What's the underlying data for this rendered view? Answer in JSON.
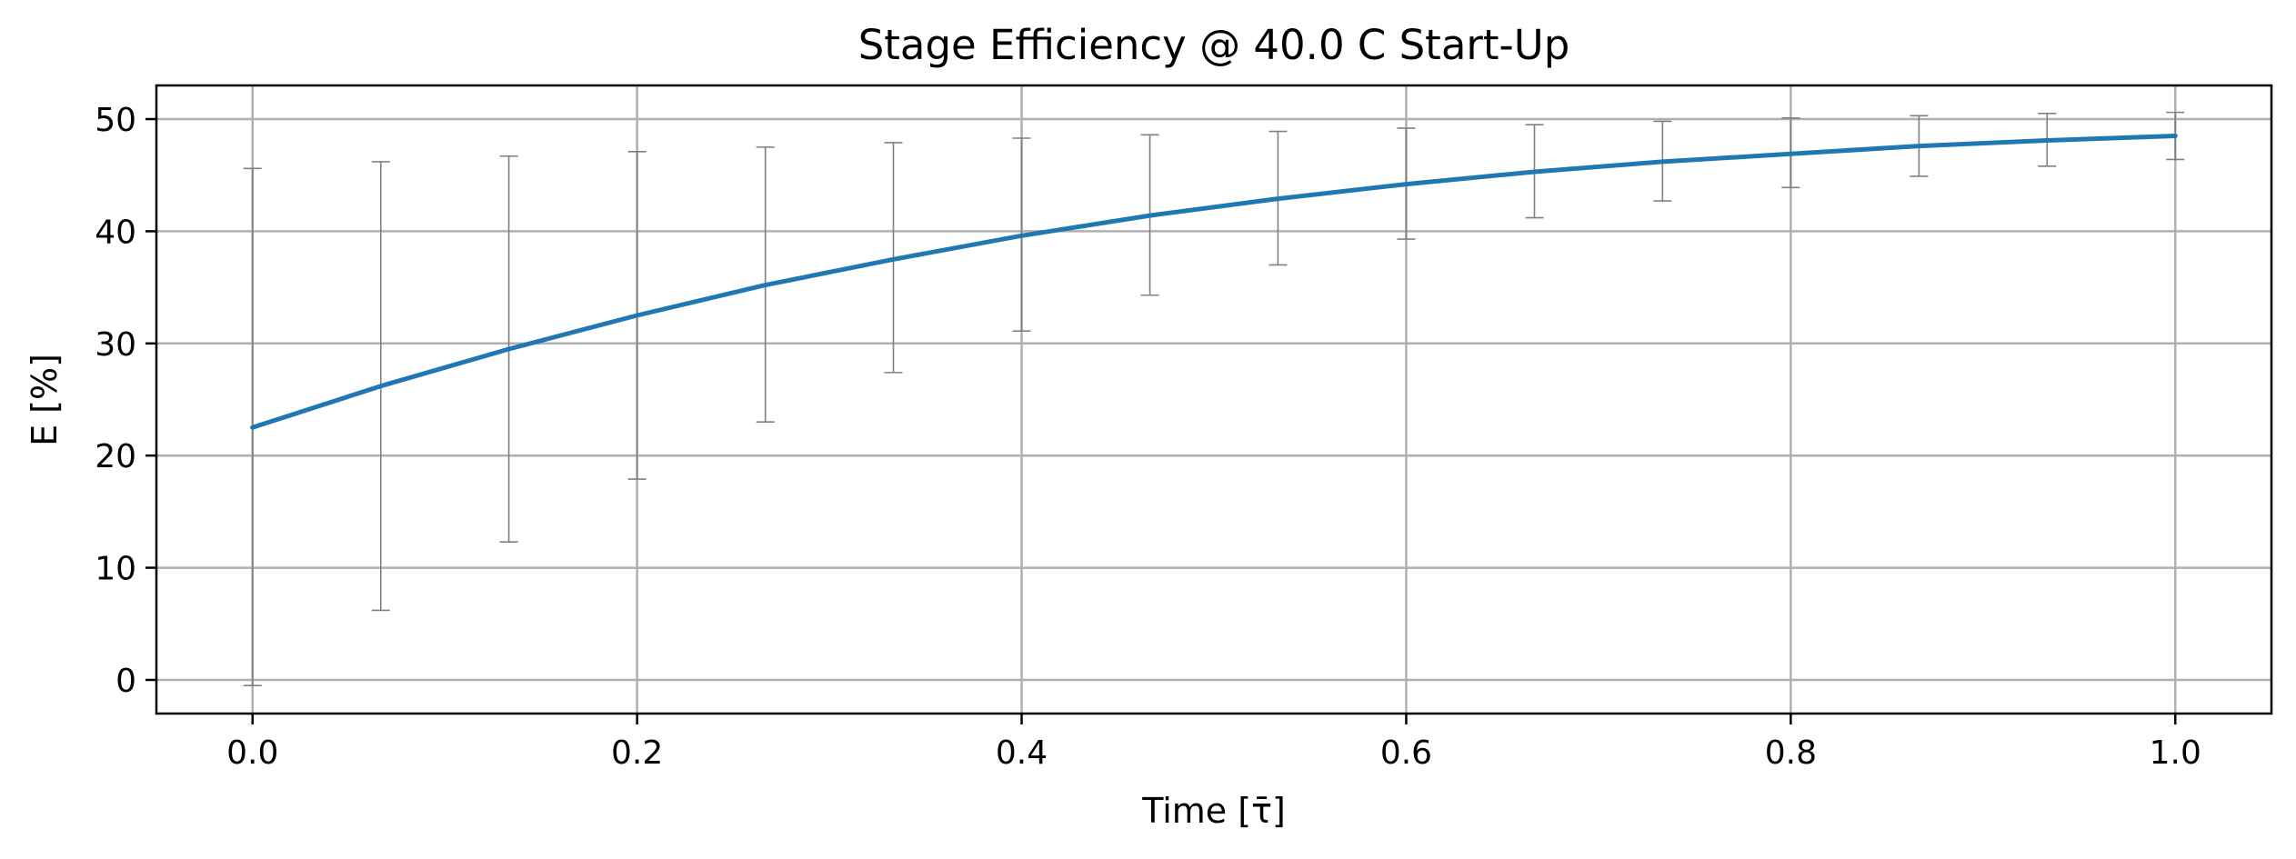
{
  "chart_data": {
    "type": "line",
    "title": "Stage Efficiency @ 40.0 C Start-Up",
    "xlabel": "Time [τ̄]",
    "ylabel": "E [%]",
    "xlim": [
      -0.05,
      1.05
    ],
    "ylim": [
      -3,
      53
    ],
    "xticks": [
      0.0,
      0.2,
      0.4,
      0.6,
      0.8,
      1.0
    ],
    "xtick_labels": [
      "0.0",
      "0.2",
      "0.4",
      "0.6",
      "0.8",
      "1.0"
    ],
    "yticks": [
      0,
      10,
      20,
      30,
      40,
      50
    ],
    "ytick_labels": [
      "0",
      "10",
      "20",
      "30",
      "40",
      "50"
    ],
    "grid": true,
    "series": [
      {
        "color": "#1f77b4",
        "x": [
          0.0,
          0.0667,
          0.1333,
          0.2,
          0.2667,
          0.3333,
          0.4,
          0.4667,
          0.5333,
          0.6,
          0.6667,
          0.7333,
          0.8,
          0.8667,
          0.9333,
          1.0
        ],
        "y": [
          22.5,
          26.2,
          29.5,
          32.5,
          35.2,
          37.5,
          39.6,
          41.4,
          42.9,
          44.2,
          45.3,
          46.2,
          46.9,
          47.6,
          48.1,
          48.5
        ],
        "error_bars": {
          "color": "#808080",
          "x": [
            0.0,
            0.0667,
            0.1333,
            0.2,
            0.2667,
            0.3333,
            0.4,
            0.4667,
            0.5333,
            0.6,
            0.6667,
            0.7333,
            0.8,
            0.8667,
            0.9333,
            1.0
          ],
          "low": [
            -0.5,
            6.2,
            12.3,
            17.9,
            23.0,
            27.4,
            31.1,
            34.3,
            37.0,
            39.3,
            41.2,
            42.7,
            43.9,
            44.9,
            45.8,
            46.4
          ],
          "high": [
            45.6,
            46.2,
            46.7,
            47.1,
            47.5,
            47.9,
            48.3,
            48.6,
            48.9,
            49.2,
            49.5,
            49.8,
            50.1,
            50.3,
            50.5,
            50.6
          ]
        }
      }
    ]
  }
}
